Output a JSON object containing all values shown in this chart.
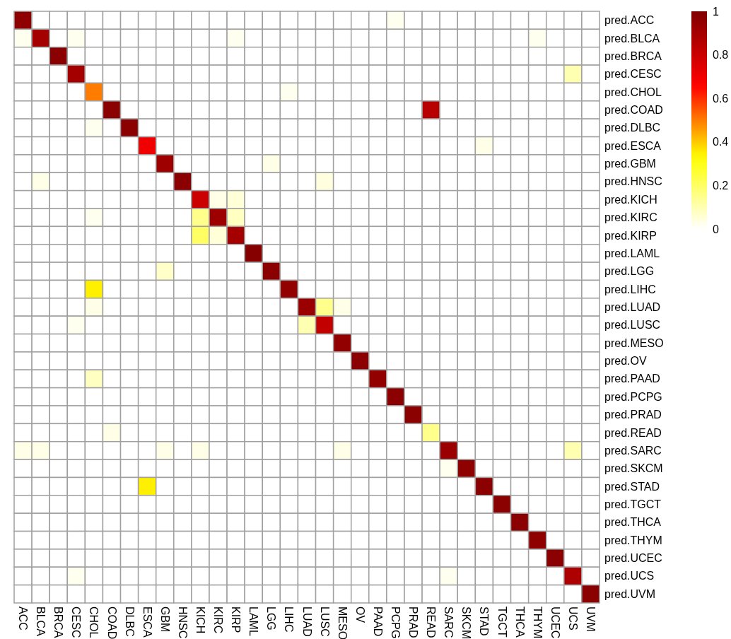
{
  "chart_data": {
    "type": "heatmap",
    "categories": [
      "ACC",
      "BLCA",
      "BRCA",
      "CESC",
      "CHOL",
      "COAD",
      "DLBC",
      "ESCA",
      "GBM",
      "HNSC",
      "KICH",
      "KIRC",
      "KIRP",
      "LAML",
      "LGG",
      "LIHC",
      "LUAD",
      "LUSC",
      "MESO",
      "OV",
      "PAAD",
      "PCPG",
      "PRAD",
      "READ",
      "SARC",
      "SKCM",
      "STAD",
      "TGCT",
      "THCA",
      "THYM",
      "UCEC",
      "UCS",
      "UVM"
    ],
    "y_categories": [
      "pred.ACC",
      "pred.BLCA",
      "pred.BRCA",
      "pred.CESC",
      "pred.CHOL",
      "pred.COAD",
      "pred.DLBC",
      "pred.ESCA",
      "pred.GBM",
      "pred.HNSC",
      "pred.KICH",
      "pred.KIRC",
      "pred.KIRP",
      "pred.LAML",
      "pred.LGG",
      "pred.LIHC",
      "pred.LUAD",
      "pred.LUSC",
      "pred.MESO",
      "pred.OV",
      "pred.PAAD",
      "pred.PCPG",
      "pred.PRAD",
      "pred.READ",
      "pred.SARC",
      "pred.SKCM",
      "pred.STAD",
      "pred.TGCT",
      "pred.THCA",
      "pred.THYM",
      "pred.UCEC",
      "pred.UCS",
      "pred.UVM"
    ],
    "cells": [
      [
        0.96,
        0,
        0,
        0,
        0,
        0,
        0,
        0,
        0,
        0,
        0,
        0,
        0,
        0,
        0,
        0,
        0,
        0,
        0,
        0,
        0,
        0.02,
        0,
        0,
        0,
        0,
        0,
        0,
        0,
        0,
        0,
        0,
        0
      ],
      [
        0.02,
        0.9,
        0,
        0.02,
        0,
        0,
        0,
        0,
        0,
        0,
        0,
        0,
        0.02,
        0,
        0,
        0,
        0,
        0,
        0,
        0,
        0,
        0,
        0,
        0,
        0,
        0,
        0,
        0,
        0,
        0.02,
        0,
        0,
        0
      ],
      [
        0,
        0,
        0.97,
        0,
        0,
        0,
        0,
        0,
        0,
        0,
        0,
        0,
        0,
        0,
        0,
        0,
        0,
        0,
        0,
        0,
        0,
        0,
        0,
        0,
        0,
        0,
        0,
        0,
        0,
        0,
        0,
        0,
        0
      ],
      [
        0,
        0,
        0,
        0.9,
        0,
        0,
        0,
        0,
        0,
        0,
        0,
        0,
        0,
        0,
        0,
        0,
        0,
        0,
        0,
        0,
        0,
        0,
        0,
        0,
        0,
        0,
        0,
        0,
        0,
        0,
        0,
        0.1,
        0
      ],
      [
        0,
        0,
        0,
        0,
        0.5,
        0,
        0,
        0,
        0,
        0,
        0,
        0,
        0,
        0,
        0,
        0.02,
        0,
        0,
        0,
        0,
        0,
        0,
        0,
        0,
        0,
        0,
        0,
        0,
        0,
        0,
        0,
        0,
        0
      ],
      [
        0,
        0,
        0,
        0,
        0,
        0.97,
        0,
        0,
        0,
        0,
        0,
        0,
        0,
        0,
        0,
        0,
        0,
        0,
        0,
        0,
        0,
        0,
        0,
        0.85,
        0,
        0,
        0,
        0,
        0,
        0,
        0,
        0,
        0
      ],
      [
        0,
        0,
        0,
        0,
        0.02,
        0,
        0.97,
        0,
        0,
        0,
        0,
        0,
        0,
        0,
        0,
        0,
        0,
        0,
        0,
        0,
        0,
        0,
        0,
        0,
        0,
        0,
        0,
        0,
        0,
        0,
        0,
        0,
        0
      ],
      [
        0,
        0,
        0,
        0,
        0,
        0,
        0,
        0.7,
        0,
        0,
        0,
        0,
        0,
        0,
        0,
        0,
        0,
        0,
        0,
        0,
        0,
        0,
        0,
        0,
        0,
        0,
        0.03,
        0,
        0,
        0,
        0,
        0,
        0
      ],
      [
        0,
        0,
        0,
        0,
        0,
        0,
        0,
        0,
        0.92,
        0,
        0,
        0,
        0,
        0,
        0.03,
        0,
        0,
        0,
        0,
        0,
        0,
        0,
        0,
        0,
        0,
        0,
        0,
        0,
        0,
        0,
        0,
        0,
        0
      ],
      [
        0,
        0.03,
        0,
        0,
        0,
        0,
        0,
        0,
        0,
        0.97,
        0,
        0,
        0,
        0,
        0,
        0,
        0,
        0.04,
        0,
        0,
        0,
        0,
        0,
        0,
        0,
        0,
        0,
        0,
        0,
        0,
        0,
        0,
        0
      ],
      [
        0,
        0,
        0,
        0,
        0,
        0,
        0,
        0,
        0,
        0,
        0.8,
        0.03,
        0.05,
        0,
        0,
        0,
        0,
        0,
        0,
        0,
        0,
        0,
        0,
        0,
        0,
        0,
        0,
        0,
        0,
        0,
        0,
        0,
        0
      ],
      [
        0,
        0,
        0,
        0,
        0.02,
        0,
        0,
        0,
        0,
        0,
        0.15,
        0.92,
        0.08,
        0,
        0,
        0,
        0,
        0,
        0,
        0,
        0,
        0,
        0,
        0,
        0,
        0,
        0,
        0,
        0,
        0,
        0,
        0,
        0
      ],
      [
        0,
        0,
        0,
        0,
        0,
        0,
        0,
        0,
        0,
        0,
        0.2,
        0.05,
        0.9,
        0,
        0,
        0,
        0,
        0,
        0,
        0,
        0,
        0,
        0,
        0,
        0,
        0,
        0,
        0,
        0,
        0,
        0,
        0,
        0
      ],
      [
        0,
        0,
        0,
        0,
        0,
        0,
        0,
        0,
        0,
        0,
        0,
        0,
        0,
        0.98,
        0,
        0,
        0,
        0,
        0,
        0,
        0,
        0,
        0,
        0,
        0,
        0,
        0,
        0,
        0,
        0,
        0,
        0,
        0
      ],
      [
        0,
        0,
        0,
        0,
        0,
        0,
        0,
        0,
        0.07,
        0,
        0,
        0,
        0,
        0,
        0.97,
        0,
        0,
        0,
        0,
        0,
        0,
        0,
        0,
        0,
        0,
        0,
        0,
        0,
        0,
        0,
        0,
        0,
        0
      ],
      [
        0,
        0,
        0,
        0,
        0.35,
        0,
        0,
        0,
        0,
        0,
        0,
        0,
        0,
        0,
        0,
        0.95,
        0,
        0,
        0,
        0,
        0,
        0,
        0,
        0,
        0,
        0,
        0,
        0,
        0,
        0,
        0,
        0,
        0
      ],
      [
        0,
        0,
        0,
        0,
        0.03,
        0,
        0,
        0,
        0,
        0,
        0,
        0,
        0,
        0,
        0,
        0,
        0.93,
        0.15,
        0.03,
        0,
        0,
        0,
        0,
        0,
        0,
        0,
        0,
        0,
        0,
        0,
        0,
        0,
        0
      ],
      [
        0,
        0,
        0,
        0.02,
        0,
        0,
        0,
        0,
        0,
        0,
        0,
        0,
        0,
        0,
        0,
        0,
        0.1,
        0.82,
        0,
        0,
        0,
        0,
        0,
        0,
        0,
        0,
        0,
        0,
        0,
        0,
        0,
        0,
        0
      ],
      [
        0,
        0,
        0,
        0,
        0,
        0,
        0,
        0,
        0,
        0,
        0,
        0,
        0,
        0,
        0,
        0,
        0,
        0,
        0.95,
        0,
        0,
        0,
        0,
        0,
        0,
        0,
        0,
        0,
        0,
        0,
        0,
        0,
        0
      ],
      [
        0,
        0,
        0,
        0,
        0,
        0,
        0,
        0,
        0,
        0,
        0,
        0,
        0,
        0,
        0,
        0,
        0,
        0,
        0,
        0.97,
        0,
        0,
        0,
        0,
        0,
        0,
        0,
        0,
        0,
        0,
        0,
        0,
        0
      ],
      [
        0,
        0,
        0,
        0,
        0.08,
        0,
        0,
        0,
        0,
        0,
        0,
        0,
        0,
        0,
        0,
        0,
        0,
        0,
        0,
        0,
        0.95,
        0,
        0,
        0,
        0,
        0,
        0,
        0,
        0,
        0,
        0,
        0,
        0
      ],
      [
        0,
        0,
        0,
        0,
        0,
        0,
        0,
        0,
        0,
        0,
        0,
        0,
        0,
        0,
        0,
        0,
        0,
        0,
        0,
        0,
        0,
        0.97,
        0,
        0,
        0,
        0,
        0,
        0,
        0,
        0,
        0,
        0,
        0
      ],
      [
        0,
        0,
        0,
        0,
        0,
        0,
        0,
        0,
        0,
        0,
        0,
        0,
        0,
        0,
        0,
        0,
        0,
        0,
        0,
        0,
        0,
        0,
        0.97,
        0,
        0,
        0,
        0,
        0,
        0,
        0,
        0,
        0,
        0
      ],
      [
        0,
        0,
        0,
        0,
        0,
        0.03,
        0,
        0,
        0,
        0,
        0,
        0,
        0,
        0,
        0,
        0,
        0,
        0,
        0,
        0,
        0,
        0,
        0,
        0.15,
        0,
        0,
        0,
        0,
        0,
        0,
        0,
        0,
        0
      ],
      [
        0.03,
        0.03,
        0,
        0,
        0,
        0,
        0,
        0,
        0.03,
        0,
        0.03,
        0,
        0,
        0,
        0,
        0,
        0,
        0,
        0.03,
        0,
        0,
        0,
        0,
        0,
        0.93,
        0,
        0,
        0,
        0,
        0,
        0,
        0.1,
        0
      ],
      [
        0,
        0,
        0,
        0,
        0,
        0,
        0,
        0,
        0,
        0,
        0,
        0,
        0,
        0,
        0,
        0,
        0,
        0,
        0,
        0,
        0,
        0,
        0,
        0,
        0.02,
        0.96,
        0,
        0,
        0,
        0,
        0,
        0,
        0
      ],
      [
        0,
        0,
        0,
        0,
        0,
        0,
        0,
        0.35,
        0,
        0,
        0,
        0,
        0,
        0,
        0,
        0,
        0,
        0,
        0,
        0,
        0,
        0,
        0,
        0,
        0,
        0,
        0.97,
        0,
        0,
        0,
        0,
        0,
        0
      ],
      [
        0,
        0,
        0,
        0,
        0,
        0,
        0,
        0,
        0,
        0,
        0,
        0,
        0,
        0,
        0,
        0,
        0,
        0,
        0,
        0,
        0,
        0,
        0,
        0,
        0,
        0,
        0,
        0.97,
        0,
        0,
        0,
        0,
        0
      ],
      [
        0,
        0,
        0,
        0,
        0,
        0,
        0,
        0,
        0,
        0,
        0,
        0,
        0,
        0,
        0,
        0,
        0,
        0,
        0,
        0,
        0,
        0,
        0,
        0,
        0,
        0,
        0,
        0,
        0.97,
        0,
        0,
        0,
        0
      ],
      [
        0,
        0,
        0,
        0,
        0,
        0,
        0,
        0,
        0,
        0,
        0,
        0,
        0,
        0,
        0,
        0,
        0,
        0,
        0,
        0,
        0,
        0,
        0,
        0,
        0,
        0,
        0,
        0,
        0,
        0.96,
        0,
        0,
        0
      ],
      [
        0,
        0,
        0,
        0,
        0,
        0,
        0,
        0,
        0,
        0,
        0,
        0,
        0,
        0,
        0,
        0,
        0,
        0,
        0,
        0,
        0,
        0,
        0,
        0,
        0,
        0,
        0,
        0,
        0,
        0,
        0.97,
        0,
        0
      ],
      [
        0,
        0,
        0,
        0.02,
        0,
        0,
        0,
        0,
        0,
        0,
        0,
        0,
        0,
        0,
        0,
        0,
        0,
        0,
        0,
        0,
        0,
        0,
        0,
        0,
        0.02,
        0,
        0,
        0,
        0,
        0,
        0,
        0.88,
        0
      ],
      [
        0,
        0,
        0,
        0,
        0,
        0,
        0,
        0,
        0,
        0,
        0,
        0,
        0,
        0,
        0,
        0,
        0,
        0,
        0,
        0,
        0,
        0,
        0,
        0,
        0,
        0,
        0,
        0,
        0,
        0,
        0,
        0,
        0.97
      ]
    ],
    "clim": [
      0,
      1
    ],
    "cticks": [
      0,
      0.2,
      0.4,
      0.6,
      0.8,
      1
    ]
  }
}
